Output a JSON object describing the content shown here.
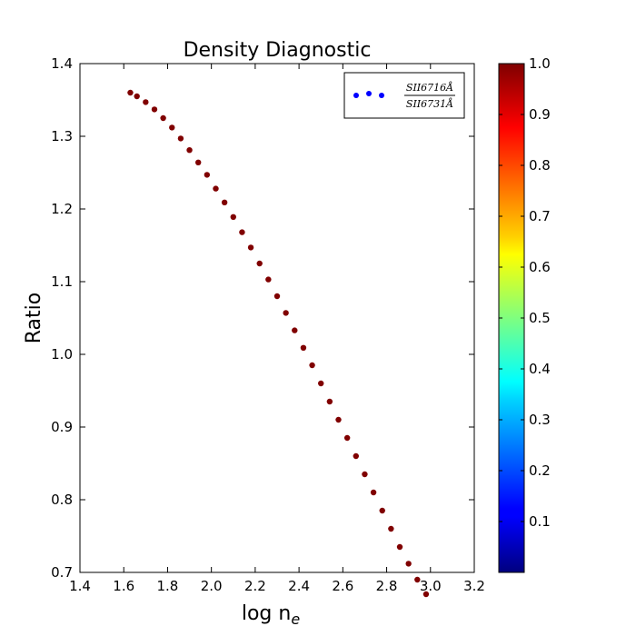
{
  "chart_data": {
    "type": "scatter",
    "title": "Density Diagnostic",
    "xlabel": "log n",
    "xlabel_subscript": "e",
    "ylabel": "Ratio",
    "xlim": [
      1.4,
      3.2
    ],
    "ylim": [
      0.7,
      1.4
    ],
    "xticks": [
      "1.4",
      "1.6",
      "1.8",
      "2.0",
      "2.2",
      "2.4",
      "2.6",
      "2.8",
      "3.0",
      "3.2"
    ],
    "yticks": [
      "0.7",
      "0.8",
      "0.9",
      "1.0",
      "1.1",
      "1.2",
      "1.3",
      "1.4"
    ],
    "legend": {
      "position": "upper right",
      "numerator": "SII6716Å",
      "denominator": "SII6731Å",
      "marker_color": "#0000ff"
    },
    "colorbar": {
      "colormap": "jet",
      "range": [
        0.0,
        1.0
      ],
      "ticks": [
        "0.1",
        "0.2",
        "0.3",
        "0.4",
        "0.5",
        "0.6",
        "0.7",
        "0.8",
        "0.9",
        "1.0"
      ]
    },
    "series": [
      {
        "color_value": 1.0,
        "points": [
          [
            1.63,
            1.36
          ],
          [
            1.66,
            1.355
          ],
          [
            1.7,
            1.347
          ],
          [
            1.74,
            1.337
          ],
          [
            1.78,
            1.325
          ],
          [
            1.82,
            1.312
          ],
          [
            1.86,
            1.297
          ],
          [
            1.9,
            1.281
          ],
          [
            1.94,
            1.264
          ],
          [
            1.98,
            1.247
          ],
          [
            2.02,
            1.228
          ],
          [
            2.06,
            1.209
          ],
          [
            2.1,
            1.189
          ],
          [
            2.14,
            1.168
          ],
          [
            2.18,
            1.147
          ],
          [
            2.22,
            1.125
          ],
          [
            2.26,
            1.103
          ],
          [
            2.3,
            1.08
          ],
          [
            2.34,
            1.057
          ],
          [
            2.38,
            1.033
          ],
          [
            2.42,
            1.009
          ],
          [
            2.46,
            0.985
          ],
          [
            2.5,
            0.96
          ],
          [
            2.54,
            0.935
          ],
          [
            2.58,
            0.91
          ],
          [
            2.62,
            0.885
          ],
          [
            2.66,
            0.86
          ],
          [
            2.7,
            0.835
          ],
          [
            2.74,
            0.81
          ],
          [
            2.78,
            0.785
          ],
          [
            2.82,
            0.76
          ],
          [
            2.86,
            0.735
          ],
          [
            2.9,
            0.712
          ],
          [
            2.94,
            0.69
          ],
          [
            2.98,
            0.67
          ]
        ]
      }
    ]
  }
}
